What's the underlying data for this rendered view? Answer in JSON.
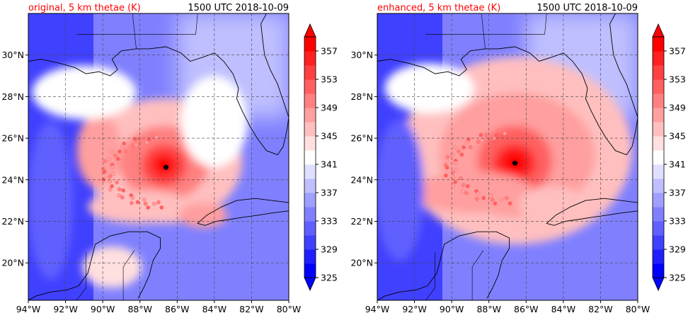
{
  "chart_data": [
    {
      "type": "heatmap",
      "title_left": "original, 5 km thetae (K)",
      "title_right": "1500 UTC 2018-10-09",
      "title_left_color": "#ff0000",
      "xlim": [
        -94,
        -80
      ],
      "ylim": [
        18.2,
        32
      ],
      "x_ticks": [
        "94°W",
        "92°W",
        "90°W",
        "88°W",
        "86°W",
        "84°W",
        "82°W",
        "80°W"
      ],
      "y_ticks": [
        "20°N",
        "22°N",
        "24°N",
        "26°N",
        "28°N",
        "30°N"
      ],
      "grid": true,
      "colorbar": {
        "min": 325,
        "max": 359,
        "step": 2,
        "extend": "both",
        "tick_labels": [
          "325",
          "329",
          "333",
          "337",
          "341",
          "345",
          "349",
          "353",
          "357"
        ]
      },
      "storm_center": {
        "lon": -86.6,
        "lat": 24.6
      }
    },
    {
      "type": "heatmap",
      "title_left": "enhanced, 5 km thetae (K)",
      "title_right": "1500 UTC 2018-10-09",
      "title_left_color": "#ff0000",
      "xlim": [
        -94,
        -80
      ],
      "ylim": [
        18.2,
        32
      ],
      "x_ticks": [
        "94°W",
        "92°W",
        "90°W",
        "88°W",
        "86°W",
        "84°W",
        "82°W",
        "80°W"
      ],
      "y_ticks": [
        "20°N",
        "22°N",
        "24°N",
        "26°N",
        "28°N",
        "30°N"
      ],
      "grid": true,
      "colorbar": {
        "min": 325,
        "max": 359,
        "step": 2,
        "extend": "both",
        "tick_labels": [
          "325",
          "329",
          "333",
          "337",
          "341",
          "345",
          "349",
          "353",
          "357"
        ]
      },
      "storm_center": {
        "lon": -86.6,
        "lat": 24.8
      }
    }
  ],
  "colors": {
    "cold": "#0000ff",
    "neutral": "#ffffff",
    "warm": "#ff0000",
    "grid": "#444444",
    "coast": "#000000"
  }
}
